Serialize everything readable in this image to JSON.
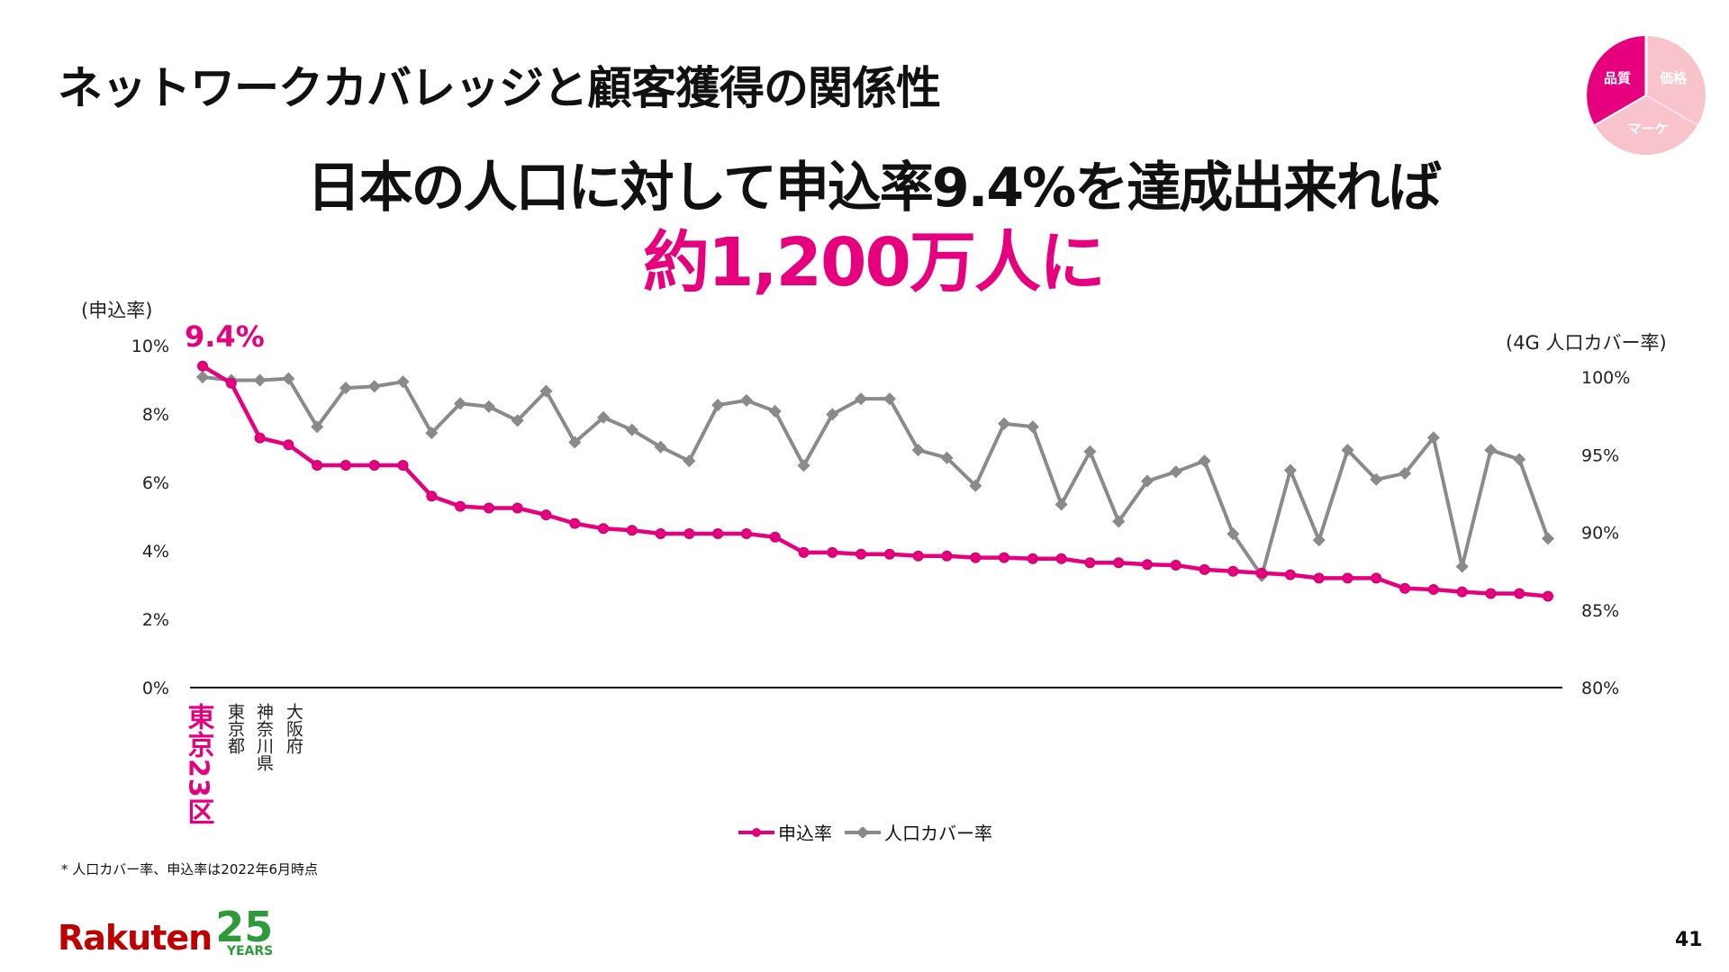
{
  "title": "ネットワークカバレッジと顧客獲得の関係性",
  "headline": {
    "line1": "日本の人口に対して申込率9.4%を達成出来れば",
    "line2": "約1,200万人に"
  },
  "badge": {
    "segments": [
      "品質",
      "価格",
      "マーケ"
    ]
  },
  "colors": {
    "pink": "#e6007e",
    "gray": "#8a8a8a"
  },
  "chart_data": {
    "type": "line",
    "left_axis": {
      "label": "(申込率)",
      "ticks": [
        "0%",
        "2%",
        "4%",
        "6%",
        "8%",
        "10%"
      ],
      "range": [
        0,
        10
      ]
    },
    "right_axis": {
      "label": "(4G 人口カバー率)",
      "ticks": [
        "80%",
        "85%",
        "90%",
        "95%",
        "100%"
      ],
      "range": [
        80,
        100
      ]
    },
    "highlight_label": "9.4%",
    "x_labels": [
      "東京23区",
      "東京都",
      "神奈川県",
      "大阪府"
    ],
    "series": [
      {
        "name": "申込率",
        "axis": "left",
        "values": [
          9.4,
          8.9,
          7.3,
          7.1,
          6.5,
          6.5,
          6.5,
          6.5,
          5.6,
          5.3,
          5.25,
          5.25,
          5.05,
          4.8,
          4.65,
          4.6,
          4.5,
          4.5,
          4.5,
          4.5,
          4.4,
          3.95,
          3.95,
          3.9,
          3.9,
          3.85,
          3.85,
          3.8,
          3.8,
          3.77,
          3.77,
          3.65,
          3.65,
          3.6,
          3.58,
          3.45,
          3.4,
          3.35,
          3.3,
          3.2,
          3.2,
          3.2,
          2.9,
          2.87,
          2.8,
          2.75,
          2.75,
          2.67
        ]
      },
      {
        "name": "人口カバー率",
        "axis": "right",
        "values": [
          100,
          99.8,
          99.8,
          99.9,
          96.8,
          99.3,
          99.4,
          99.7,
          96.4,
          98.3,
          98.1,
          97.2,
          99.1,
          95.8,
          97.4,
          96.6,
          95.5,
          94.6,
          98.2,
          98.5,
          97.8,
          94.3,
          97.6,
          98.6,
          98.6,
          95.3,
          94.8,
          93.0,
          97.0,
          96.8,
          91.8,
          95.2,
          90.7,
          93.3,
          93.9,
          94.6,
          89.9,
          87.2,
          94.0,
          89.5,
          95.3,
          93.4,
          93.8,
          96.1,
          87.8,
          95.3,
          94.7,
          89.6
        ]
      }
    ]
  },
  "footnote": "* 人口カバー率、申込率は2022年6月時点",
  "logo": {
    "brand": "Rakuten",
    "num": "25",
    "sub": "YEARS"
  },
  "page_number": "41"
}
